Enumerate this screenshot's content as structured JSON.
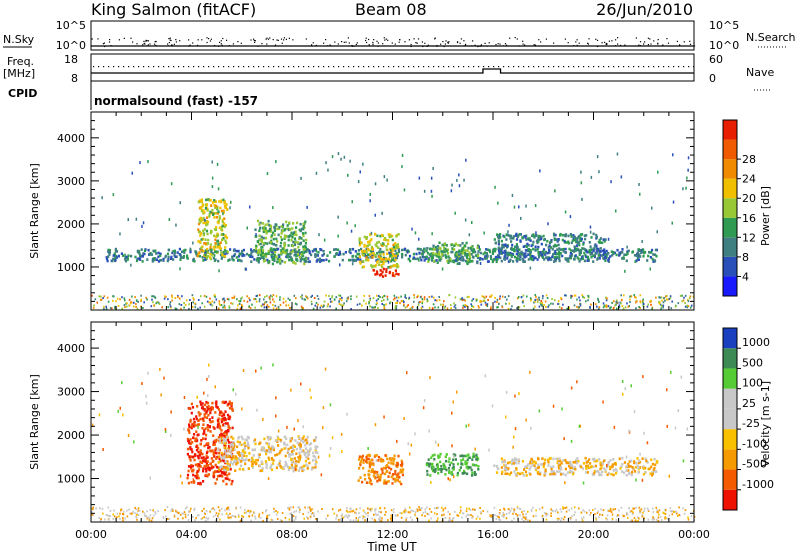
{
  "header": {
    "station": "King Salmon (fitACF)",
    "beam": "Beam 08",
    "date": "26/Jun/2010"
  },
  "strip": {
    "nsky_label": "N.Sky",
    "nsearch_label": "N.Search",
    "nsky_ticks": [
      "10^5",
      "10^0"
    ],
    "nsearch_ticks": [
      "10^5",
      "10^0"
    ],
    "freq_label_1": "Freq.",
    "freq_label_2": "[MHz]",
    "freq_ticks": [
      "18",
      "8"
    ],
    "nave_label": "Nave",
    "nave_ticks": [
      "60",
      "0"
    ],
    "cpid_label": "CPID",
    "cpid_text": "normalsound (fast) -157"
  },
  "colors": {
    "power": [
      "#1a1aff",
      "#2a4fb8",
      "#3f7f82",
      "#2f9a52",
      "#98c833",
      "#f0c000",
      "#f08a00",
      "#f05a00",
      "#e81e00"
    ],
    "velocity": [
      "#ee1100",
      "#f45a00",
      "#f59a00",
      "#f8c000",
      "#c8c8c8",
      "#c8c8c8",
      "#55cc33",
      "#3d8a55",
      "#1a40c0"
    ]
  },
  "chart_data": [
    {
      "type": "heatmap",
      "name": "power",
      "ylabel": "Slant Range [km]",
      "xlabel": "Time UT",
      "x_ticks": [
        "00:00",
        "04:00",
        "08:00",
        "12:00",
        "16:00",
        "20:00",
        "00:00"
      ],
      "y_ticks": [
        "1000",
        "2000",
        "3000",
        "4000"
      ],
      "ylim": [
        0,
        4600
      ],
      "xlim_hours": [
        0,
        24
      ],
      "colorbar_title": "Power [dB]",
      "colorbar_labels": [
        "4",
        "8",
        "12",
        "16",
        "20",
        "24",
        "28"
      ],
      "features": [
        {
          "t": [
            0.5,
            22.5
          ],
          "r": [
            1150,
            1450
          ],
          "value": 8
        },
        {
          "t": [
            4.2,
            5.4
          ],
          "r": [
            1200,
            2600
          ],
          "value": 16
        },
        {
          "t": [
            6.5,
            8.6
          ],
          "r": [
            1100,
            2100
          ],
          "value": 12
        },
        {
          "t": [
            10.6,
            12.2
          ],
          "r": [
            1000,
            1800
          ],
          "value": 16
        },
        {
          "t": [
            11.2,
            12.2
          ],
          "r": [
            800,
            1000
          ],
          "value": 28
        },
        {
          "t": [
            13.3,
            15.4
          ],
          "r": [
            1100,
            1600
          ],
          "value": 12
        },
        {
          "t": [
            16.0,
            20.5
          ],
          "r": [
            1200,
            1800
          ],
          "value": 8
        }
      ]
    },
    {
      "type": "heatmap",
      "name": "velocity",
      "ylabel": "Slant Range [km]",
      "xlabel": "Time UT",
      "x_ticks": [
        "00:00",
        "04:00",
        "08:00",
        "12:00",
        "16:00",
        "20:00",
        "00:00"
      ],
      "y_ticks": [
        "1000",
        "2000",
        "3000",
        "4000"
      ],
      "ylim": [
        0,
        4600
      ],
      "xlim_hours": [
        0,
        24
      ],
      "colorbar_title": "Velocity [m s-1]",
      "colorbar_labels": [
        "1000",
        "500",
        "100",
        "25",
        "-25",
        "-100",
        "-500",
        "-1000"
      ],
      "features": [
        {
          "t": [
            3.8,
            5.6
          ],
          "r": [
            900,
            2800
          ],
          "value": -500
        },
        {
          "t": [
            5.0,
            9.0
          ],
          "r": [
            1200,
            2000
          ],
          "value": 0
        },
        {
          "t": [
            10.6,
            12.4
          ],
          "r": [
            900,
            1600
          ],
          "value": -100
        },
        {
          "t": [
            13.3,
            15.4
          ],
          "r": [
            1100,
            1600
          ],
          "value": 500
        },
        {
          "t": [
            16.0,
            22.5
          ],
          "r": [
            1100,
            1500
          ],
          "value": 0
        }
      ]
    }
  ]
}
